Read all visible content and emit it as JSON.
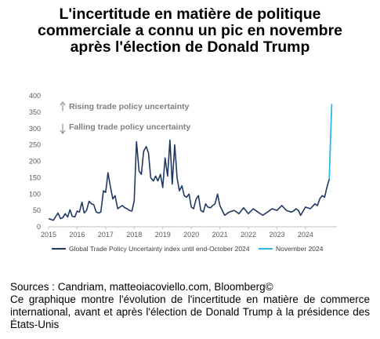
{
  "title_lines": [
    "L'incertitude en matière de politique",
    "commerciale a connu un pic en novembre",
    "après l'élection de Donald Trump"
  ],
  "footer": {
    "sources": "Sources : Candriam, matteoiacoviello.com, Bloomberg©",
    "description": "Ce graphique montre l'évolution de l'incertitude en matière de commerce international, avant et après l'élection de Donald Trump à la présidence des États-Unis"
  },
  "chart_data": {
    "type": "line",
    "title": "",
    "xlabel": "",
    "ylabel": "",
    "ylim": [
      0,
      400
    ],
    "xlim": [
      2015,
      2025.1
    ],
    "yticks": [
      "0",
      "50",
      "100",
      "150",
      "200",
      "250",
      "300",
      "350",
      "400"
    ],
    "xticks": [
      "2015",
      "2016",
      "2017",
      "2018",
      "2019",
      "2020",
      "2021",
      "2022",
      "2023",
      "2024"
    ],
    "grid": false,
    "legend_position": "bottom",
    "annotations": [
      {
        "text": "Rising trade policy uncertainty",
        "arrow": "up"
      },
      {
        "text": "Falling trade policy uncertainty",
        "arrow": "down"
      }
    ],
    "series": [
      {
        "name": "Global Trade Policy Uncertainty index until end-October 2024",
        "color": "#1f3864",
        "x": [
          2015.0,
          2015.17,
          2015.33,
          2015.42,
          2015.5,
          2015.58,
          2015.67,
          2015.75,
          2015.83,
          2015.92,
          2016.0,
          2016.08,
          2016.17,
          2016.25,
          2016.33,
          2016.42,
          2016.5,
          2016.58,
          2016.67,
          2016.75,
          2016.83,
          2016.92,
          2017.0,
          2017.08,
          2017.17,
          2017.25,
          2017.33,
          2017.42,
          2017.5,
          2017.58,
          2017.67,
          2017.75,
          2017.83,
          2017.92,
          2018.0,
          2018.08,
          2018.17,
          2018.25,
          2018.33,
          2018.42,
          2018.5,
          2018.58,
          2018.67,
          2018.75,
          2018.83,
          2018.92,
          2019.0,
          2019.08,
          2019.17,
          2019.25,
          2019.33,
          2019.42,
          2019.5,
          2019.58,
          2019.67,
          2019.75,
          2019.83,
          2019.92,
          2020.0,
          2020.08,
          2020.17,
          2020.25,
          2020.33,
          2020.42,
          2020.5,
          2020.58,
          2020.67,
          2020.75,
          2020.83,
          2020.92,
          2021.0,
          2021.17,
          2021.33,
          2021.5,
          2021.67,
          2021.83,
          2022.0,
          2022.17,
          2022.33,
          2022.5,
          2022.67,
          2022.83,
          2023.0,
          2023.17,
          2023.33,
          2023.5,
          2023.58,
          2023.67,
          2023.75,
          2023.83,
          2024.0,
          2024.17,
          2024.33,
          2024.42,
          2024.5,
          2024.58,
          2024.67,
          2024.75,
          2024.83
        ],
        "y": [
          25,
          20,
          42,
          25,
          28,
          40,
          30,
          52,
          32,
          30,
          48,
          45,
          75,
          42,
          50,
          78,
          70,
          68,
          45,
          42,
          45,
          110,
          105,
          165,
          120,
          85,
          95,
          55,
          60,
          65,
          58,
          55,
          50,
          48,
          80,
          260,
          170,
          160,
          230,
          245,
          225,
          150,
          140,
          155,
          140,
          160,
          120,
          210,
          155,
          265,
          130,
          250,
          150,
          110,
          125,
          95,
          90,
          100,
          60,
          55,
          85,
          95,
          50,
          45,
          70,
          60,
          58,
          65,
          70,
          100,
          65,
          35,
          45,
          50,
          40,
          58,
          40,
          55,
          45,
          35,
          45,
          55,
          50,
          65,
          50,
          45,
          48,
          55,
          50,
          35,
          60,
          55,
          70,
          65,
          85,
          95,
          90,
          120,
          145
        ]
      },
      {
        "name": "November 2024",
        "color": "#31b7e8",
        "x": [
          2024.83,
          2024.92
        ],
        "y": [
          145,
          375
        ]
      }
    ]
  }
}
